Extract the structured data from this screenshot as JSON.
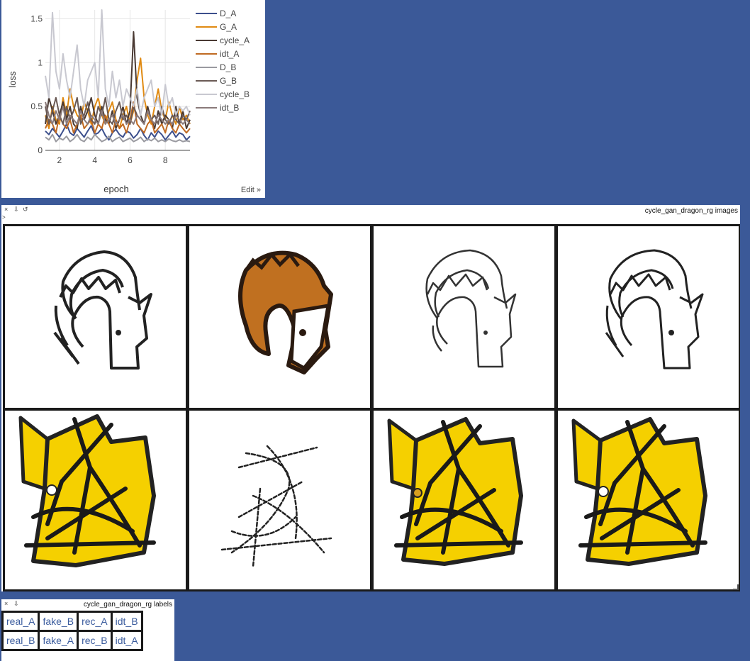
{
  "plot": {
    "xlabel": "epoch",
    "ylabel": "loss",
    "edit_label": "Edit »",
    "yticks": [
      "0",
      "0.5",
      "1",
      "1.5"
    ],
    "xticks": [
      "2",
      "4",
      "6",
      "8"
    ]
  },
  "chart_data": {
    "type": "line",
    "xlabel": "epoch",
    "ylabel": "loss",
    "xlim": [
      1.2,
      9.4
    ],
    "ylim": [
      0,
      1.6
    ],
    "grid": true,
    "legend_position": "right",
    "x": [
      1.2,
      1.4,
      1.6,
      1.8,
      2.0,
      2.2,
      2.4,
      2.6,
      2.8,
      3.0,
      3.2,
      3.4,
      3.6,
      3.8,
      4.0,
      4.2,
      4.4,
      4.6,
      4.8,
      5.0,
      5.2,
      5.4,
      5.6,
      5.8,
      6.0,
      6.2,
      6.4,
      6.6,
      6.8,
      7.0,
      7.2,
      7.4,
      7.6,
      7.8,
      8.0,
      8.2,
      8.4,
      8.6,
      8.8,
      9.0,
      9.2,
      9.4
    ],
    "series": [
      {
        "name": "D_A",
        "color": "#3c4f8c",
        "values": [
          0.22,
          0.18,
          0.25,
          0.2,
          0.15,
          0.22,
          0.3,
          0.2,
          0.17,
          0.25,
          0.2,
          0.15,
          0.22,
          0.28,
          0.18,
          0.2,
          0.25,
          0.17,
          0.12,
          0.2,
          0.24,
          0.18,
          0.15,
          0.22,
          0.2,
          0.14,
          0.18,
          0.25,
          0.17,
          0.12,
          0.2,
          0.15,
          0.22,
          0.18,
          0.12,
          0.17,
          0.22,
          0.15,
          0.2,
          0.18,
          0.12,
          0.16
        ]
      },
      {
        "name": "G_A",
        "color": "#e08a12",
        "values": [
          0.4,
          0.25,
          0.5,
          0.35,
          0.3,
          0.6,
          0.4,
          0.7,
          0.5,
          0.4,
          0.35,
          0.55,
          0.45,
          0.3,
          0.5,
          0.6,
          0.4,
          0.3,
          0.45,
          0.55,
          0.35,
          0.25,
          0.4,
          0.5,
          0.3,
          0.45,
          0.8,
          1.05,
          0.6,
          0.4,
          0.3,
          0.5,
          0.7,
          0.45,
          0.35,
          0.55,
          0.4,
          0.3,
          0.5,
          0.35,
          0.4,
          0.3
        ]
      },
      {
        "name": "cycle_A",
        "color": "#4a3a33",
        "values": [
          0.3,
          0.6,
          0.45,
          0.3,
          0.4,
          0.55,
          0.35,
          0.5,
          0.3,
          0.25,
          0.5,
          0.35,
          0.45,
          0.6,
          0.4,
          0.3,
          0.5,
          0.35,
          0.3,
          0.45,
          0.25,
          0.35,
          0.5,
          0.3,
          0.45,
          1.35,
          0.6,
          0.4,
          0.3,
          0.5,
          0.35,
          0.25,
          0.45,
          0.3,
          0.4,
          0.35,
          0.25,
          0.5,
          0.3,
          0.45,
          0.25,
          0.35
        ]
      },
      {
        "name": "idt_A",
        "color": "#c06a22",
        "values": [
          0.25,
          0.35,
          0.3,
          0.2,
          0.4,
          0.3,
          0.25,
          0.35,
          0.2,
          0.3,
          0.4,
          0.25,
          0.3,
          0.35,
          0.2,
          0.3,
          0.25,
          0.4,
          0.3,
          0.2,
          0.35,
          0.25,
          0.3,
          0.2,
          0.35,
          0.55,
          0.3,
          0.25,
          0.2,
          0.3,
          0.35,
          0.2,
          0.25,
          0.3,
          0.2,
          0.35,
          0.25,
          0.2,
          0.3,
          0.25,
          0.2,
          0.25
        ]
      },
      {
        "name": "D_B",
        "color": "#9a9aa0",
        "values": [
          0.15,
          0.12,
          0.18,
          0.1,
          0.14,
          0.12,
          0.16,
          0.1,
          0.13,
          0.18,
          0.12,
          0.1,
          0.15,
          0.12,
          0.18,
          0.14,
          0.1,
          0.12,
          0.16,
          0.1,
          0.13,
          0.15,
          0.1,
          0.12,
          0.14,
          0.1,
          0.12,
          0.15,
          0.1,
          0.13,
          0.11,
          0.14,
          0.1,
          0.12,
          0.1,
          0.13,
          0.11,
          0.1,
          0.12,
          0.1,
          0.11,
          0.1
        ]
      },
      {
        "name": "G_B",
        "color": "#6a5a55",
        "values": [
          0.5,
          0.3,
          0.45,
          0.6,
          0.4,
          0.3,
          0.5,
          0.35,
          0.45,
          0.6,
          0.3,
          0.4,
          0.55,
          0.35,
          0.3,
          0.5,
          0.4,
          0.6,
          0.35,
          0.3,
          0.45,
          0.55,
          0.35,
          0.4,
          0.3,
          0.5,
          0.4,
          0.35,
          0.3,
          0.45,
          0.35,
          0.4,
          0.3,
          0.5,
          0.35,
          0.3,
          0.4,
          0.35,
          0.3,
          0.4,
          0.35,
          0.45
        ]
      },
      {
        "name": "cycle_B",
        "color": "#c8c8d0",
        "values": [
          0.85,
          0.6,
          1.57,
          0.9,
          0.7,
          1.1,
          0.8,
          0.6,
          0.9,
          1.2,
          0.7,
          0.5,
          0.8,
          0.9,
          1.0,
          0.6,
          1.6,
          0.7,
          0.5,
          0.9,
          0.6,
          0.8,
          0.5,
          0.7,
          0.6,
          0.5,
          0.7,
          0.4,
          0.6,
          0.7,
          0.8,
          0.5,
          0.6,
          0.4,
          0.75,
          0.5,
          0.6,
          0.4,
          0.5,
          0.45,
          0.5,
          0.4
        ]
      },
      {
        "name": "idt_B",
        "color": "#8a7a7a",
        "values": [
          0.55,
          0.4,
          0.3,
          0.45,
          0.35,
          0.5,
          0.3,
          0.4,
          0.35,
          0.3,
          0.45,
          0.35,
          0.3,
          0.4,
          0.35,
          0.3,
          0.45,
          0.3,
          0.35,
          0.4,
          0.3,
          0.35,
          0.4,
          0.3,
          0.35,
          0.3,
          0.4,
          0.35,
          0.3,
          0.45,
          0.35,
          0.3,
          0.4,
          0.35,
          0.3,
          0.35,
          0.3,
          0.4,
          0.35,
          0.3,
          0.35,
          0.3
        ]
      }
    ]
  },
  "images_pane": {
    "title": "cycle_gan_dragon_rg images",
    "close_icon": "×",
    "download_icon": "⇩",
    "reset_icon": "↺",
    "drag_glyph": ">"
  },
  "labels_pane": {
    "title": "cycle_gan_dragon_rg labels",
    "close_icon": "×",
    "download_icon": "⇩",
    "rows": [
      [
        "real_A",
        "fake_B",
        "rec_A",
        "idt_B"
      ],
      [
        "real_B",
        "fake_A",
        "rec_B",
        "idt_A"
      ]
    ]
  },
  "colors": {
    "background": "#3b5998",
    "dragon_fill": "#c07020",
    "yellow_fill": "#f5d000",
    "link_text": "#3b5c9e"
  }
}
